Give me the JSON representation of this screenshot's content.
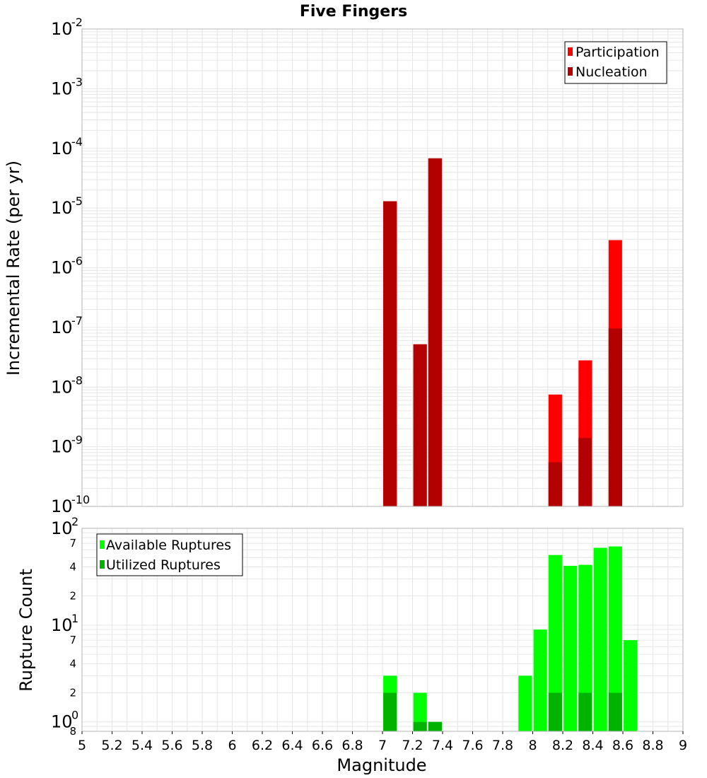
{
  "title": "Five Fingers",
  "colors": {
    "participation": "#ff0000",
    "nucleation": "#b30000",
    "available": "#00ff00",
    "utilized": "#00b300",
    "grid": "#e6e6e6",
    "frame": "#b3b3b3"
  },
  "chart_data": [
    {
      "type": "bar",
      "ylabel": "Incremental Rate (per yr)",
      "yscale": "log",
      "ylim": [
        1e-10,
        0.01
      ],
      "xlim": [
        5,
        9
      ],
      "bar_width": 0.09,
      "legend": {
        "position": "top-right",
        "entries": [
          "Participation",
          "Nucleation"
        ]
      },
      "series": [
        {
          "name": "Participation",
          "x": [
            7.05,
            7.25,
            7.35,
            8.15,
            8.35,
            8.55
          ],
          "values": [
            1.3e-05,
            5.2e-08,
            6.8e-05,
            7.5e-09,
            2.8e-08,
            2.9e-06
          ]
        },
        {
          "name": "Nucleation",
          "x": [
            7.05,
            7.25,
            7.35,
            8.15,
            8.35,
            8.55
          ],
          "values": [
            1.3e-05,
            5.2e-08,
            6.8e-05,
            5.5e-10,
            1.4e-09,
            9.6e-08
          ]
        }
      ]
    },
    {
      "type": "bar",
      "xlabel": "Magnitude",
      "ylabel": "Rupture Count",
      "yscale": "log",
      "ylim": [
        0.8,
        100
      ],
      "xlim": [
        5,
        9
      ],
      "bar_width": 0.09,
      "legend": {
        "position": "top-left",
        "entries": [
          "Available Ruptures",
          "Utilized Ruptures"
        ]
      },
      "series": [
        {
          "name": "Available Ruptures",
          "x": [
            7.05,
            7.25,
            7.35,
            7.95,
            8.05,
            8.15,
            8.25,
            8.35,
            8.45,
            8.55,
            8.65
          ],
          "values": [
            3,
            2,
            1,
            3,
            9,
            53,
            41,
            42,
            63,
            65,
            7
          ]
        },
        {
          "name": "Utilized Ruptures",
          "x": [
            7.05,
            7.25,
            7.35,
            8.15,
            8.35,
            8.55
          ],
          "values": [
            2,
            1,
            1,
            2,
            2,
            2
          ]
        }
      ]
    }
  ],
  "x_ticks": [
    "5",
    "5.2",
    "5.4",
    "5.6",
    "5.8",
    "6",
    "6.2",
    "6.4",
    "6.6",
    "6.8",
    "7",
    "7.2",
    "7.4",
    "7.6",
    "7.8",
    "8",
    "8.2",
    "8.4",
    "8.6",
    "8.8",
    "9"
  ],
  "top_y_ticks": [
    {
      "base": "10",
      "exp": "-10"
    },
    {
      "base": "10",
      "exp": "-9"
    },
    {
      "base": "10",
      "exp": "-8"
    },
    {
      "base": "10",
      "exp": "-7"
    },
    {
      "base": "10",
      "exp": "-6"
    },
    {
      "base": "10",
      "exp": "-5"
    },
    {
      "base": "10",
      "exp": "-4"
    },
    {
      "base": "10",
      "exp": "-3"
    },
    {
      "base": "10",
      "exp": "-2"
    }
  ],
  "bottom_y_ticks": {
    "major": [
      {
        "base": "10",
        "exp": "0"
      },
      {
        "base": "10",
        "exp": "1"
      },
      {
        "base": "10",
        "exp": "2"
      }
    ],
    "minor": [
      "8",
      "2",
      "4",
      "7",
      "2",
      "4",
      "7"
    ]
  }
}
